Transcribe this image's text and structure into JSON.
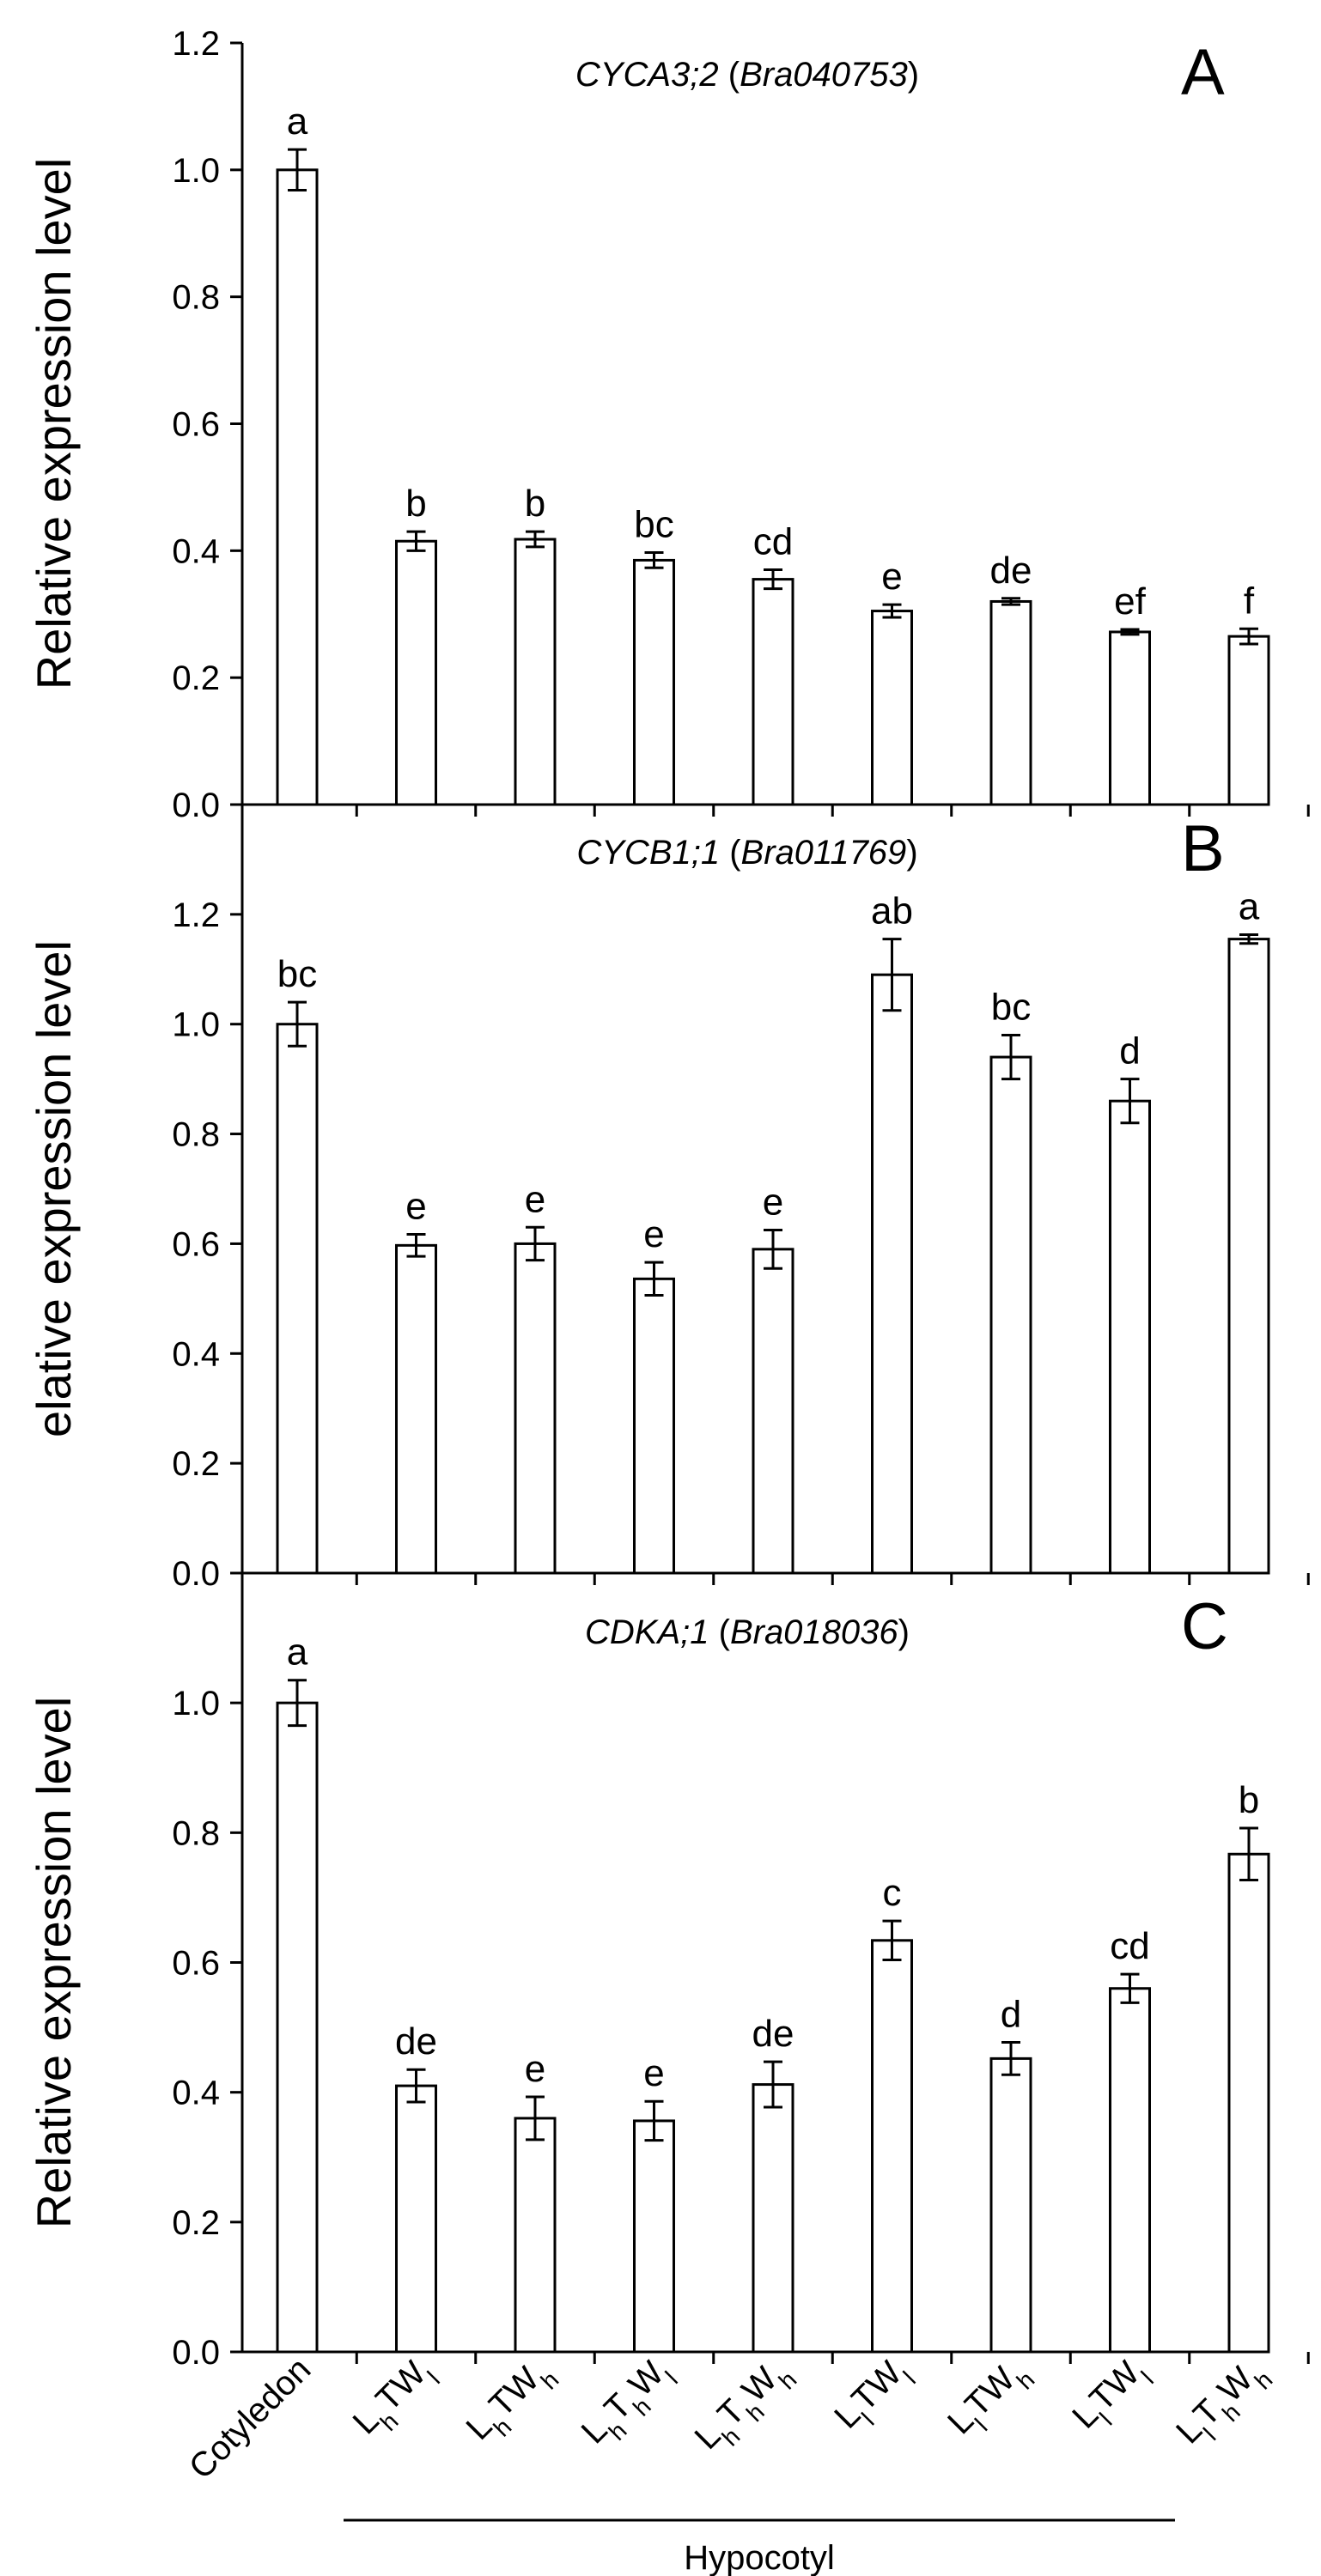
{
  "chart_data": [
    {
      "type": "bar",
      "panel_letter": "A",
      "title_gene": "CYCA3;2",
      "title_id": "Bra040753",
      "ylabel": "Relative expression level",
      "ylim": [
        0,
        1.2
      ],
      "yticks": [
        "0.0",
        "0.2",
        "0.4",
        "0.6",
        "0.8",
        "1.0",
        "1.2"
      ],
      "values": [
        1.0,
        0.415,
        0.418,
        0.385,
        0.355,
        0.305,
        0.32,
        0.272,
        0.265
      ],
      "errors": [
        0.032,
        0.015,
        0.012,
        0.012,
        0.015,
        0.01,
        0.005,
        0.004,
        0.012
      ],
      "letters": [
        "a",
        "b",
        "b",
        "bc",
        "cd",
        "e",
        "de",
        "ef",
        "f"
      ]
    },
    {
      "type": "bar",
      "panel_letter": "B",
      "title_gene": "CYCB1;1",
      "title_id": "Bra011769",
      "ylabel": "elative expression level",
      "ylim": [
        0,
        1.4
      ],
      "yticks": [
        "0.0",
        "0.2",
        "0.4",
        "0.6",
        "0.8",
        "1.0",
        "1.2"
      ],
      "values": [
        1.0,
        0.597,
        0.6,
        0.536,
        0.59,
        1.09,
        0.94,
        0.86,
        1.155
      ],
      "errors": [
        0.04,
        0.02,
        0.03,
        0.03,
        0.035,
        0.065,
        0.04,
        0.04,
        0.008
      ],
      "letters": [
        "bc",
        "e",
        "e",
        "e",
        "e",
        "ab",
        "bc",
        "d",
        "a"
      ]
    },
    {
      "type": "bar",
      "panel_letter": "C",
      "title_gene": "CDKA;1",
      "title_id": "Bra018036",
      "ylabel": "Relative expression level",
      "ylim": [
        0,
        1.2
      ],
      "yticks": [
        "0.0",
        "0.2",
        "0.4",
        "0.6",
        "0.8",
        "1.0"
      ],
      "values": [
        1.0,
        0.41,
        0.36,
        0.356,
        0.412,
        0.634,
        0.452,
        0.56,
        0.767
      ],
      "errors": [
        0.035,
        0.025,
        0.033,
        0.03,
        0.035,
        0.03,
        0.025,
        0.022,
        0.04
      ],
      "letters": [
        "a",
        "de",
        "e",
        "e",
        "de",
        "c",
        "d",
        "cd",
        "b"
      ]
    }
  ],
  "categories": [
    {
      "label": "Cotyledon"
    },
    {
      "parts": [
        [
          "L",
          "h"
        ],
        [
          "T",
          ""
        ],
        [
          "W",
          "l"
        ]
      ]
    },
    {
      "parts": [
        [
          "L",
          "h"
        ],
        [
          "T",
          ""
        ],
        [
          "W",
          "h"
        ]
      ]
    },
    {
      "parts": [
        [
          "L",
          "h"
        ],
        [
          "T",
          "h"
        ],
        [
          "W",
          "l"
        ]
      ]
    },
    {
      "parts": [
        [
          "L",
          "h"
        ],
        [
          "T",
          "h"
        ],
        [
          "W",
          "h"
        ]
      ]
    },
    {
      "parts": [
        [
          "L",
          "l"
        ],
        [
          "T",
          ""
        ],
        [
          "W",
          "l"
        ]
      ]
    },
    {
      "parts": [
        [
          "L",
          "l"
        ],
        [
          "T",
          ""
        ],
        [
          "W",
          "h"
        ]
      ]
    },
    {
      "parts": [
        [
          "L",
          "l"
        ],
        [
          "T",
          ""
        ],
        [
          "W",
          "l"
        ]
      ]
    },
    {
      "parts": [
        [
          "L",
          "l"
        ],
        [
          "T",
          "h"
        ],
        [
          "W",
          "h"
        ]
      ]
    }
  ],
  "group_label": "Hypocotyl"
}
